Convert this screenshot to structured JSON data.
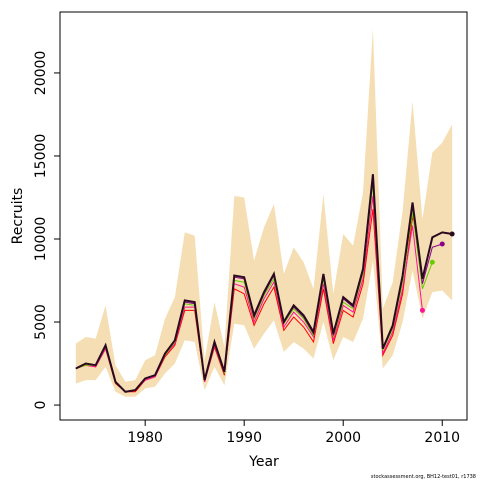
{
  "chart_data": {
    "type": "line",
    "xlabel": "Year",
    "ylabel": "Recruits",
    "footnote": "stockassessment.org, BH12-test01, r1738",
    "x": [
      1973,
      1974,
      1975,
      1976,
      1977,
      1978,
      1979,
      1980,
      1981,
      1982,
      1983,
      1984,
      1985,
      1986,
      1987,
      1988,
      1989,
      1990,
      1991,
      1992,
      1993,
      1994,
      1995,
      1996,
      1997,
      1998,
      1999,
      2000,
      2001,
      2002,
      2003,
      2004,
      2005,
      2006,
      2007,
      2008,
      2009,
      2010,
      2011
    ],
    "band": {
      "color": "#f5deb3",
      "upper": [
        3700,
        4100,
        4000,
        6000,
        2400,
        1400,
        1500,
        2700,
        3000,
        5200,
        6500,
        10400,
        10200,
        2700,
        6200,
        3500,
        12600,
        12500,
        8700,
        10700,
        12100,
        7900,
        9500,
        8600,
        7000,
        12700,
        6700,
        10300,
        9600,
        12800,
        22700,
        5800,
        7400,
        11700,
        18300,
        11200,
        15200,
        15800,
        16900
      ],
      "lower": [
        1300,
        1500,
        1500,
        2300,
        800,
        500,
        500,
        1000,
        1100,
        1900,
        2500,
        3900,
        3800,
        900,
        2300,
        1200,
        4900,
        4800,
        3400,
        4300,
        5100,
        3200,
        3800,
        3400,
        2800,
        5000,
        2700,
        4100,
        3800,
        5200,
        8700,
        2200,
        3000,
        5000,
        8100,
        5200,
        6800,
        6900,
        6300
      ]
    },
    "series": [
      {
        "color": "#ff0000",
        "values": [
          2200,
          2400,
          2300,
          3400,
          1300,
          800,
          800,
          1500,
          1700,
          2900,
          3600,
          5700,
          5700,
          1400,
          3500,
          1800,
          7000,
          6700,
          4800,
          6100,
          7100,
          4500,
          5300,
          4700,
          3800,
          7000,
          3700,
          5700,
          5300,
          7300,
          11800,
          3000,
          4200,
          6700,
          11300,
          null,
          null,
          null,
          null
        ]
      },
      {
        "color": "#ff1493",
        "values": [
          2200,
          2400,
          2300,
          3400,
          1400,
          800,
          900,
          1500,
          1700,
          3000,
          3700,
          5900,
          5900,
          1400,
          3600,
          1900,
          7300,
          7100,
          5000,
          6400,
          7400,
          4700,
          5600,
          5000,
          4100,
          7300,
          3900,
          6000,
          5600,
          7600,
          12600,
          3100,
          4400,
          7000,
          10800,
          5700,
          null,
          null,
          null
        ]
      },
      {
        "color": "#66cc00",
        "values": [
          2200,
          2400,
          2400,
          3500,
          1400,
          800,
          900,
          1600,
          1800,
          3000,
          3800,
          6100,
          6000,
          1500,
          3700,
          1900,
          7500,
          7400,
          5200,
          6600,
          7600,
          4900,
          5800,
          5200,
          4200,
          7600,
          4100,
          6200,
          5800,
          7900,
          13300,
          3300,
          4600,
          7400,
          11600,
          7000,
          8600,
          null,
          null
        ]
      },
      {
        "color": "#8b008b",
        "values": [
          2200,
          2500,
          2400,
          3600,
          1400,
          800,
          900,
          1600,
          1800,
          3100,
          3900,
          6200,
          6100,
          1500,
          3700,
          2000,
          7700,
          7600,
          5300,
          6700,
          7800,
          5000,
          5900,
          5300,
          4300,
          7800,
          4200,
          6400,
          5900,
          8100,
          13700,
          3400,
          4700,
          7700,
          12000,
          7300,
          9500,
          9700,
          null
        ]
      },
      {
        "color": "#2a0a1e",
        "values": [
          2200,
          2500,
          2400,
          3600,
          1400,
          800,
          900,
          1600,
          1800,
          3100,
          3900,
          6300,
          6200,
          1500,
          3800,
          2000,
          7800,
          7700,
          5400,
          6800,
          7900,
          5000,
          6000,
          5400,
          4400,
          7900,
          4300,
          6500,
          6000,
          8200,
          13900,
          3400,
          4800,
          7800,
          12200,
          7600,
          10100,
          10400,
          10300
        ]
      }
    ],
    "xlim": [
      1971.4,
      2012.5
    ],
    "ylim": [
      -900,
      23670
    ],
    "xticks": [
      1980,
      1990,
      2000,
      2010
    ],
    "yticks": [
      0,
      5000,
      10000,
      15000,
      20000
    ]
  }
}
